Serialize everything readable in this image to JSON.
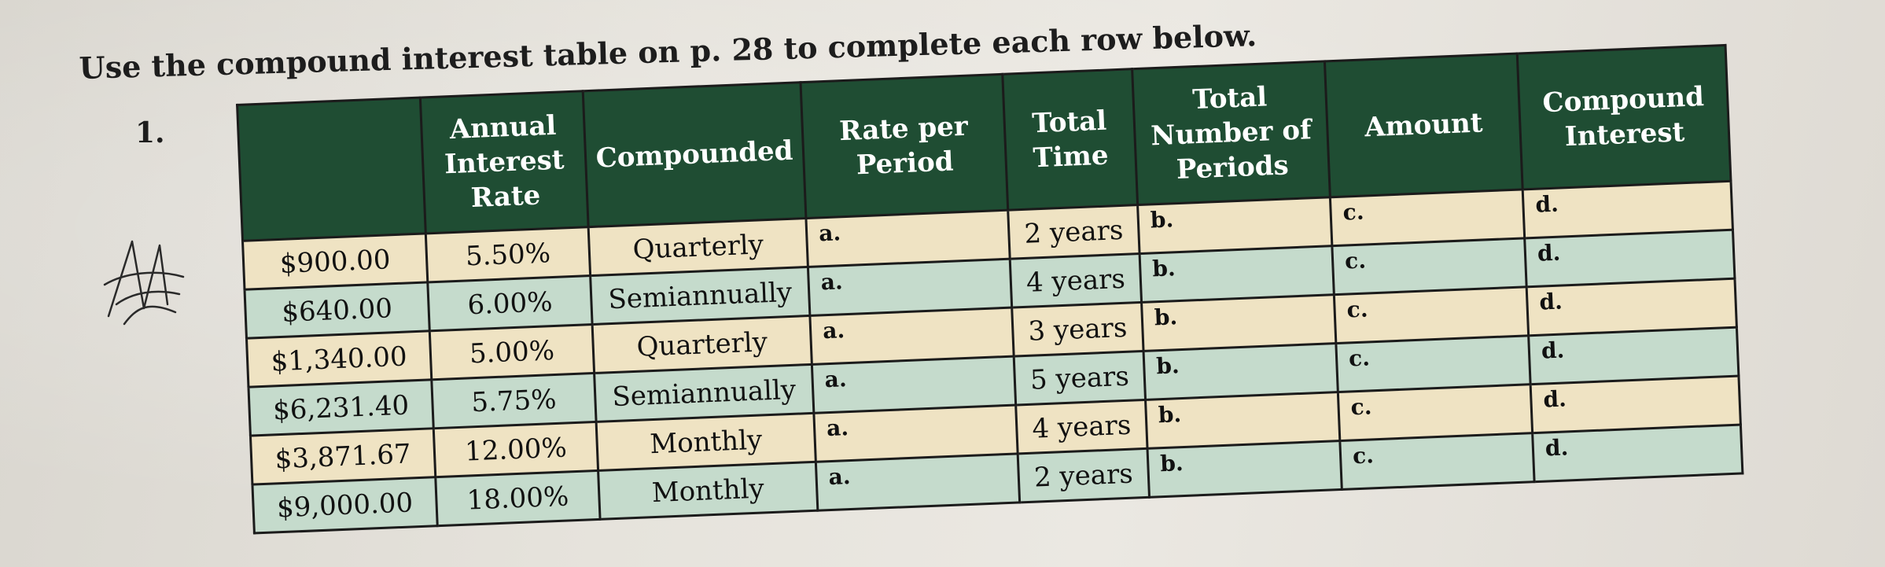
{
  "instruction": "Use the compound interest table on p. 28 to complete each row below.",
  "problem_number": "1.",
  "table": {
    "headers": {
      "principal": "",
      "annual_interest_rate": "Annual Interest Rate",
      "compounded": "Compounded",
      "rate_per_period": "Rate per Period",
      "total_time": "Total Time",
      "total_number_of_periods": "Total Number of Periods",
      "amount": "Amount",
      "compound_interest": "Compound Interest"
    },
    "blank_letters": {
      "a": "a.",
      "b": "b.",
      "c": "c.",
      "d": "d."
    },
    "rows": [
      {
        "principal": "$900.00",
        "rate": "5.50%",
        "compounded": "Quarterly",
        "time": "2 years"
      },
      {
        "principal": "$640.00",
        "rate": "6.00%",
        "compounded": "Semiannually",
        "time": "4 years"
      },
      {
        "principal": "$1,340.00",
        "rate": "5.00%",
        "compounded": "Quarterly",
        "time": "3 years"
      },
      {
        "principal": "$6,231.40",
        "rate": "5.75%",
        "compounded": "Semiannually",
        "time": "5 years"
      },
      {
        "principal": "$3,871.67",
        "rate": "12.00%",
        "compounded": "Monthly",
        "time": "4 years"
      },
      {
        "principal": "$9,000.00",
        "rate": "18.00%",
        "compounded": "Monthly",
        "time": "2 years"
      }
    ]
  }
}
